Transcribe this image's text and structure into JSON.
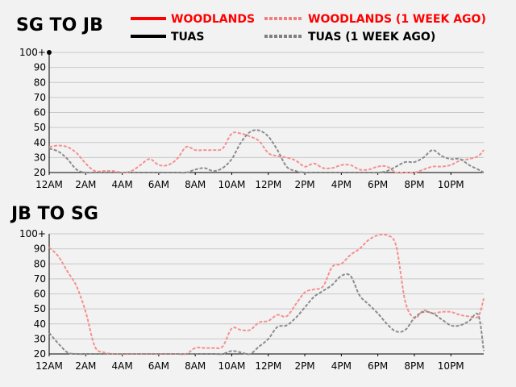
{
  "colors": {
    "woodlands": "#ff0000",
    "tuas": "#000000",
    "woodlands_prev": "#f59090",
    "tuas_prev": "#8c8c8c",
    "grid": "#c8c8c8",
    "background": "#f2f2f2"
  },
  "legend": [
    {
      "label": "WOODLANDS",
      "color": "#ff0000",
      "style": "solid"
    },
    {
      "label": "WOODLANDS (1 WEEK AGO)",
      "color": "#f08080",
      "style": "dashed",
      "text_color": "#ff0000"
    },
    {
      "label": "TUAS",
      "color": "#000000",
      "style": "solid"
    },
    {
      "label": "TUAS (1 WEEK AGO)",
      "color": "#808080",
      "style": "dashed",
      "text_color": "#000000"
    }
  ],
  "chart_data": [
    {
      "type": "line",
      "title": "SG TO JB",
      "x_tick_labels": [
        "12AM",
        "2AM",
        "4AM",
        "6AM",
        "8AM",
        "10AM",
        "12PM",
        "2PM",
        "4PM",
        "6PM",
        "8PM",
        "10PM"
      ],
      "y_tick_labels": [
        "100+",
        "90",
        "80",
        "70",
        "60",
        "50",
        "40",
        "30",
        "20"
      ],
      "xlim": [
        0,
        23.8
      ],
      "ylim": [
        20,
        100
      ],
      "grid": true,
      "series": [
        {
          "name": "WOODLANDS",
          "values": []
        },
        {
          "name": "TUAS",
          "x": [
            0
          ],
          "values": [
            100
          ]
        },
        {
          "name": "WOODLANDS (1 WEEK AGO)",
          "x": [
            0,
            0.5,
            1,
            1.5,
            2,
            2.5,
            3,
            3.5,
            4,
            4.5,
            5,
            5.5,
            6,
            6.5,
            7,
            7.5,
            8,
            8.5,
            9,
            9.5,
            10,
            10.5,
            11,
            11.5,
            12,
            12.5,
            13,
            13.5,
            14,
            14.5,
            15,
            15.5,
            16,
            16.5,
            17,
            17.5,
            18,
            18.5,
            19,
            19.5,
            20,
            20.5,
            21,
            21.5,
            22,
            22.5,
            23,
            23.5,
            23.8
          ],
          "values": [
            37,
            38,
            37,
            33,
            26,
            21,
            21,
            21,
            20,
            21,
            25,
            29,
            25,
            25,
            29,
            37,
            35,
            35,
            35,
            36,
            46,
            46,
            44,
            41,
            33,
            31,
            30,
            28,
            24,
            26,
            23,
            23,
            25,
            25,
            22,
            22,
            24,
            24,
            20,
            20,
            20,
            22,
            24,
            24,
            25,
            28,
            29,
            31,
            35
          ]
        },
        {
          "name": "TUAS (1 WEEK AGO)",
          "x": [
            0,
            0.5,
            1,
            1.5,
            2,
            2.5,
            3,
            3.5,
            4,
            4.5,
            5,
            5.5,
            6,
            6.5,
            7,
            7.5,
            8,
            8.5,
            9,
            9.5,
            10,
            10.5,
            11,
            11.5,
            12,
            12.5,
            13,
            13.5,
            14,
            14.5,
            15,
            15.5,
            16,
            16.5,
            17,
            17.5,
            18,
            18.5,
            19,
            19.5,
            20,
            20.5,
            21,
            21.5,
            22,
            22.5,
            23,
            23.5,
            23.8
          ],
          "values": [
            36,
            34,
            29,
            22,
            20,
            20,
            20,
            20,
            20,
            20,
            20,
            20,
            20,
            20,
            20,
            20,
            22,
            23,
            21,
            23,
            29,
            40,
            47,
            48,
            44,
            35,
            24,
            21,
            20,
            20,
            20,
            20,
            20,
            20,
            20,
            20,
            20,
            21,
            24,
            27,
            27,
            30,
            35,
            31,
            29,
            29,
            25,
            22,
            20
          ]
        }
      ]
    },
    {
      "type": "line",
      "title": "JB TO SG",
      "x_tick_labels": [
        "12AM",
        "2AM",
        "4AM",
        "6AM",
        "8AM",
        "10AM",
        "12PM",
        "2PM",
        "4PM",
        "6PM",
        "8PM",
        "10PM"
      ],
      "y_tick_labels": [
        "100+",
        "90",
        "80",
        "70",
        "60",
        "50",
        "40",
        "30",
        "20"
      ],
      "xlim": [
        0,
        23.8
      ],
      "ylim": [
        20,
        100
      ],
      "grid": true,
      "series": [
        {
          "name": "WOODLANDS",
          "values": []
        },
        {
          "name": "TUAS",
          "values": []
        },
        {
          "name": "WOODLANDS (1 WEEK AGO)",
          "x": [
            0,
            0.5,
            1,
            1.5,
            2,
            2.5,
            3,
            3.5,
            4,
            4.5,
            5,
            5.5,
            6,
            6.5,
            7,
            7.5,
            8,
            8.5,
            9,
            9.5,
            10,
            10.5,
            11,
            11.5,
            12,
            12.5,
            13,
            13.5,
            14,
            14.5,
            15,
            15.5,
            16,
            16.5,
            17,
            17.5,
            18,
            18.5,
            19,
            19.5,
            20,
            20.5,
            21,
            21.5,
            22,
            22.5,
            23,
            23.5,
            23.8
          ],
          "values": [
            91,
            85,
            75,
            65,
            48,
            25,
            21,
            20,
            20,
            20,
            20,
            20,
            20,
            20,
            20,
            20,
            24,
            24,
            24,
            25,
            37,
            36,
            36,
            41,
            42,
            46,
            45,
            53,
            61,
            63,
            65,
            78,
            80,
            86,
            90,
            96,
            99,
            99,
            92,
            55,
            44,
            49,
            47,
            48,
            48,
            46,
            45,
            45,
            57
          ]
        },
        {
          "name": "TUAS (1 WEEK AGO)",
          "x": [
            0,
            0.5,
            1,
            1.5,
            2,
            2.5,
            3,
            3.5,
            4,
            4.5,
            5,
            5.5,
            6,
            6.5,
            7,
            7.5,
            8,
            8.5,
            9,
            9.5,
            10,
            10.5,
            11,
            11.5,
            12,
            12.5,
            13,
            13.5,
            14,
            14.5,
            15,
            15.5,
            16,
            16.5,
            17,
            17.5,
            18,
            18.5,
            19,
            19.5,
            20,
            20.5,
            21,
            21.5,
            22,
            22.5,
            23,
            23.5,
            23.8
          ],
          "values": [
            34,
            27,
            21,
            20,
            20,
            20,
            20,
            20,
            20,
            20,
            20,
            20,
            20,
            20,
            20,
            20,
            20,
            20,
            20,
            20,
            22,
            21,
            20,
            25,
            30,
            38,
            39,
            44,
            51,
            58,
            62,
            66,
            72,
            72,
            59,
            53,
            47,
            40,
            35,
            36,
            44,
            48,
            47,
            43,
            39,
            39,
            42,
            46,
            22
          ]
        }
      ]
    }
  ]
}
